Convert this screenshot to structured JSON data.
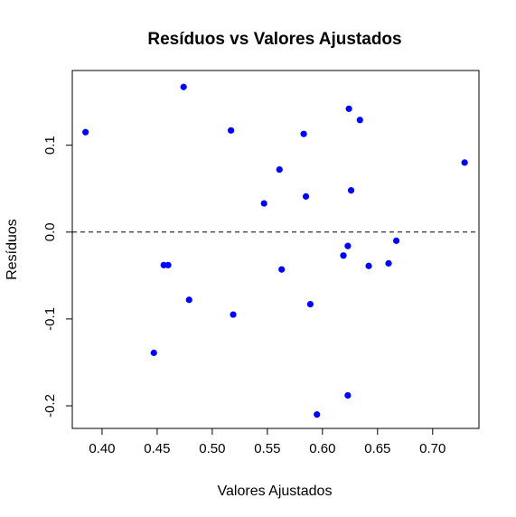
{
  "chart_data": {
    "type": "scatter",
    "title": "Resíduos vs Valores Ajustados",
    "xlabel": "Valores Ajustados",
    "ylabel": "Resíduos",
    "xlim": [
      0.373,
      0.742
    ],
    "ylim": [
      -0.226,
      0.186
    ],
    "x_ticks": [
      0.4,
      0.45,
      0.5,
      0.55,
      0.6,
      0.65,
      0.7
    ],
    "x_tick_labels": [
      "0.40",
      "0.45",
      "0.50",
      "0.55",
      "0.60",
      "0.65",
      "0.70"
    ],
    "y_ticks": [
      0.1,
      0.0,
      -0.1,
      -0.2
    ],
    "y_tick_labels": [
      "0.1",
      "0.0",
      "-0.1",
      "-0.2"
    ],
    "reference_line": {
      "y": 0,
      "style": "dashed"
    },
    "grid": false,
    "point_color": "#0000ff",
    "points": [
      {
        "x": 0.385,
        "y": 0.115
      },
      {
        "x": 0.474,
        "y": 0.167
      },
      {
        "x": 0.517,
        "y": 0.117
      },
      {
        "x": 0.583,
        "y": 0.113
      },
      {
        "x": 0.624,
        "y": 0.142
      },
      {
        "x": 0.634,
        "y": 0.129
      },
      {
        "x": 0.729,
        "y": 0.08
      },
      {
        "x": 0.561,
        "y": 0.072
      },
      {
        "x": 0.547,
        "y": 0.033
      },
      {
        "x": 0.585,
        "y": 0.041
      },
      {
        "x": 0.626,
        "y": 0.048
      },
      {
        "x": 0.456,
        "y": -0.038
      },
      {
        "x": 0.46,
        "y": -0.038
      },
      {
        "x": 0.563,
        "y": -0.043
      },
      {
        "x": 0.479,
        "y": -0.078
      },
      {
        "x": 0.519,
        "y": -0.095
      },
      {
        "x": 0.589,
        "y": -0.083
      },
      {
        "x": 0.623,
        "y": -0.016
      },
      {
        "x": 0.619,
        "y": -0.027
      },
      {
        "x": 0.642,
        "y": -0.039
      },
      {
        "x": 0.66,
        "y": -0.036
      },
      {
        "x": 0.667,
        "y": -0.01
      },
      {
        "x": 0.447,
        "y": -0.139
      },
      {
        "x": 0.623,
        "y": -0.188
      },
      {
        "x": 0.595,
        "y": -0.21
      }
    ]
  }
}
